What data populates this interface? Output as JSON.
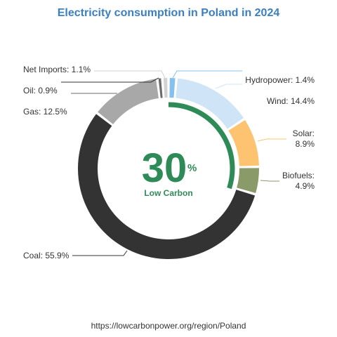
{
  "title": "Electricity consumption in Poland in 2024",
  "footer_url": "https://lowcarbonpower.org/region/Poland",
  "center": {
    "value": "30",
    "unit": "%",
    "caption": "Low Carbon"
  },
  "colors": {
    "title": "#3a7fc1",
    "low_carbon": "#2e8b57",
    "Hydropower": "#86c0ee",
    "Wind": "#cfe5f7",
    "Solar": "#fdc371",
    "Biofuels": "#8a9a68",
    "Coal": "#333333",
    "Gas": "#a8a8a8",
    "Oil": "#6b6b6b",
    "Net Imports": "#d2d2d2"
  },
  "chart_data": {
    "type": "pie",
    "title": "Electricity consumption in Poland in 2024",
    "slices": [
      {
        "name": "Hydropower",
        "value": 1.4,
        "label": "Hydropower: 1.4%"
      },
      {
        "name": "Wind",
        "value": 14.4,
        "label": "Wind: 14.4%"
      },
      {
        "name": "Solar",
        "value": 8.9,
        "label": "Solar: 8.9%",
        "label_lines": [
          "Solar:",
          "8.9%"
        ]
      },
      {
        "name": "Biofuels",
        "value": 4.9,
        "label": "Biofuels: 4.9%",
        "label_lines": [
          "Biofuels:",
          "4.9%"
        ]
      },
      {
        "name": "Coal",
        "value": 55.9,
        "label": "Coal: 55.9%"
      },
      {
        "name": "Gas",
        "value": 12.5,
        "label": "Gas: 12.5%"
      },
      {
        "name": "Oil",
        "value": 0.9,
        "label": "Oil: 0.9%"
      },
      {
        "name": "Net Imports",
        "value": 1.1,
        "label": "Net Imports: 1.1%"
      }
    ],
    "low_carbon_share": 30
  }
}
